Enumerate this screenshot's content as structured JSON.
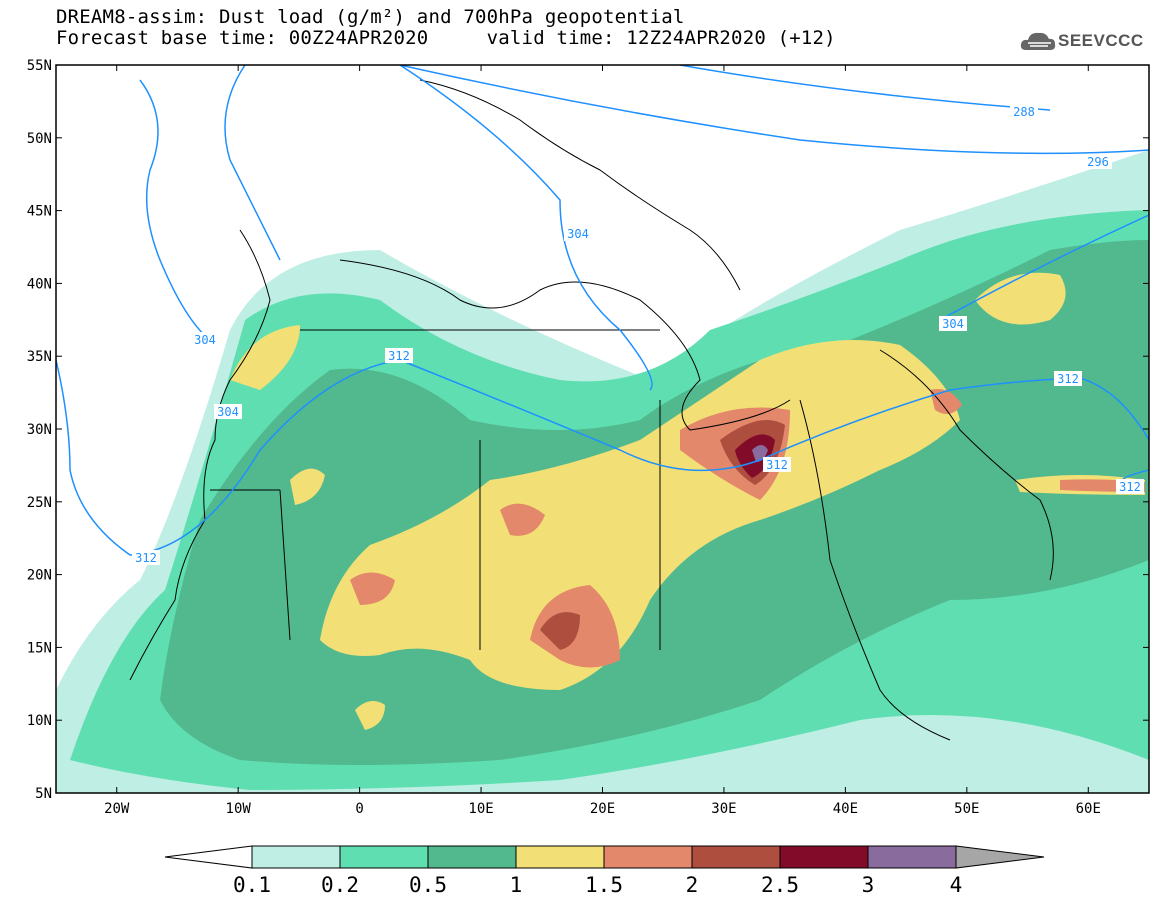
{
  "title": {
    "line1": "DREAM8-assim: Dust load (g/m²) and 700hPa geopotential",
    "line2": "Forecast base time: 00Z24APR2020     valid time: 12Z24APR2020 (+12)"
  },
  "logo": {
    "text": "SEEVCCC",
    "icon": "cloud-icon"
  },
  "map": {
    "lon_range": [
      -25,
      65
    ],
    "lat_range": [
      5,
      55
    ],
    "lon_ticks": [
      "20W",
      "10W",
      "0",
      "10E",
      "20E",
      "30E",
      "40E",
      "50E",
      "60E"
    ],
    "lat_ticks": [
      "55N",
      "50N",
      "45N",
      "40N",
      "35N",
      "30N",
      "25N",
      "20N",
      "15N",
      "10N",
      "5N"
    ],
    "geopotential_labels": [
      "288",
      "296",
      "304",
      "304",
      "304",
      "304",
      "312",
      "312",
      "312",
      "312",
      "312"
    ]
  },
  "colorbar": {
    "ticks": [
      "0.1",
      "0.2",
      "0.5",
      "1",
      "1.5",
      "2",
      "2.5",
      "3",
      "4"
    ],
    "colors": [
      "#bfeee5",
      "#5fdfb1",
      "#52b98f",
      "#f2e076",
      "#e3886a",
      "#ad4e3f",
      "#820b29",
      "#8a6b9d"
    ],
    "low_color": "#ffffff",
    "high_color": "#a6a6a6"
  }
}
